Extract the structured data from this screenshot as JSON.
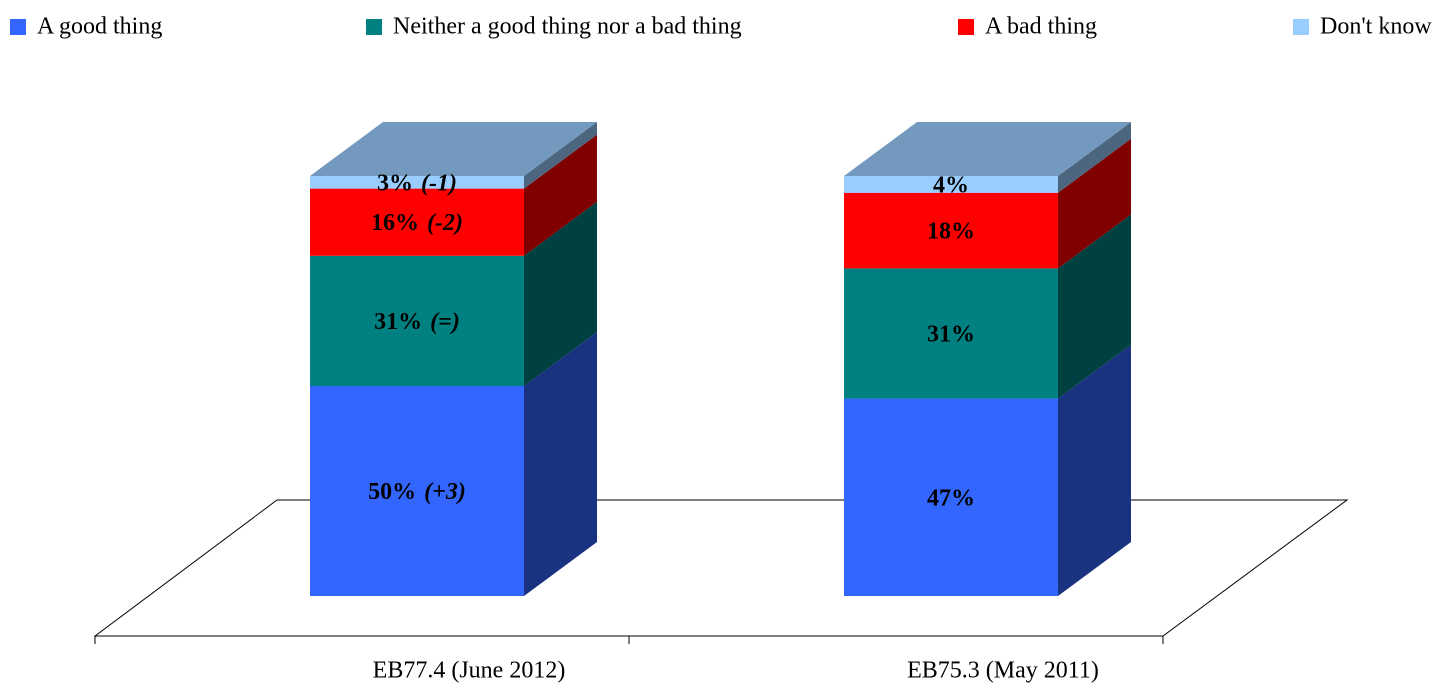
{
  "chart_data": {
    "type": "bar3d_stacked",
    "categories": [
      "EB77.4 (June 2012)",
      "EB75.3 (May 2011)"
    ],
    "series": [
      {
        "name": "A good thing",
        "color": "#3366ff",
        "values": [
          50,
          47
        ],
        "value_labels": [
          "50%",
          "47%"
        ],
        "changes": [
          "(+3)",
          null
        ]
      },
      {
        "name": "Neither a good thing nor a bad thing",
        "color": "#008080",
        "values": [
          31,
          31
        ],
        "value_labels": [
          "31%",
          "31%"
        ],
        "changes": [
          "(=)",
          null
        ]
      },
      {
        "name": "A bad thing",
        "color": "#ff0000",
        "values": [
          16,
          18
        ],
        "value_labels": [
          "16%",
          "18%"
        ],
        "changes": [
          "(-2)",
          null
        ]
      },
      {
        "name": "Don't know",
        "color": "#99ccff",
        "values": [
          3,
          4
        ],
        "value_labels": [
          "3%",
          "4%"
        ],
        "changes": [
          "(-1)",
          null
        ]
      }
    ]
  }
}
